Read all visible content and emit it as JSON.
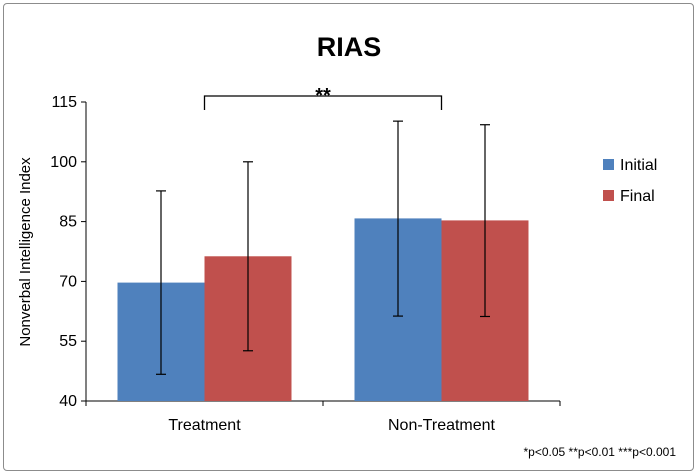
{
  "chart_data": {
    "type": "bar",
    "title": "RIAS",
    "xlabel": "",
    "ylabel": "Nonverbal Intelligence Index",
    "ylim": [
      40,
      115
    ],
    "yticks": [
      40,
      55,
      70,
      85,
      100,
      115
    ],
    "categories": [
      "Treatment",
      "Non-Treatment"
    ],
    "series": [
      {
        "name": "Initial",
        "color": "#4f81bd",
        "values": [
          69.7,
          85.8
        ],
        "error_low": [
          46.7,
          61.3
        ],
        "error_high": [
          92.7,
          110.2
        ]
      },
      {
        "name": "Final",
        "color": "#c0504d",
        "values": [
          76.3,
          85.3
        ],
        "error_low": [
          52.6,
          61.2
        ],
        "error_high": [
          100.0,
          109.3
        ]
      }
    ],
    "legend": "right",
    "grid": false,
    "significance": {
      "label": "**",
      "from": "Treatment",
      "to": "Non-Treatment"
    },
    "footnote": "*p<0.05 **p<0.01 ***p<0.001"
  }
}
